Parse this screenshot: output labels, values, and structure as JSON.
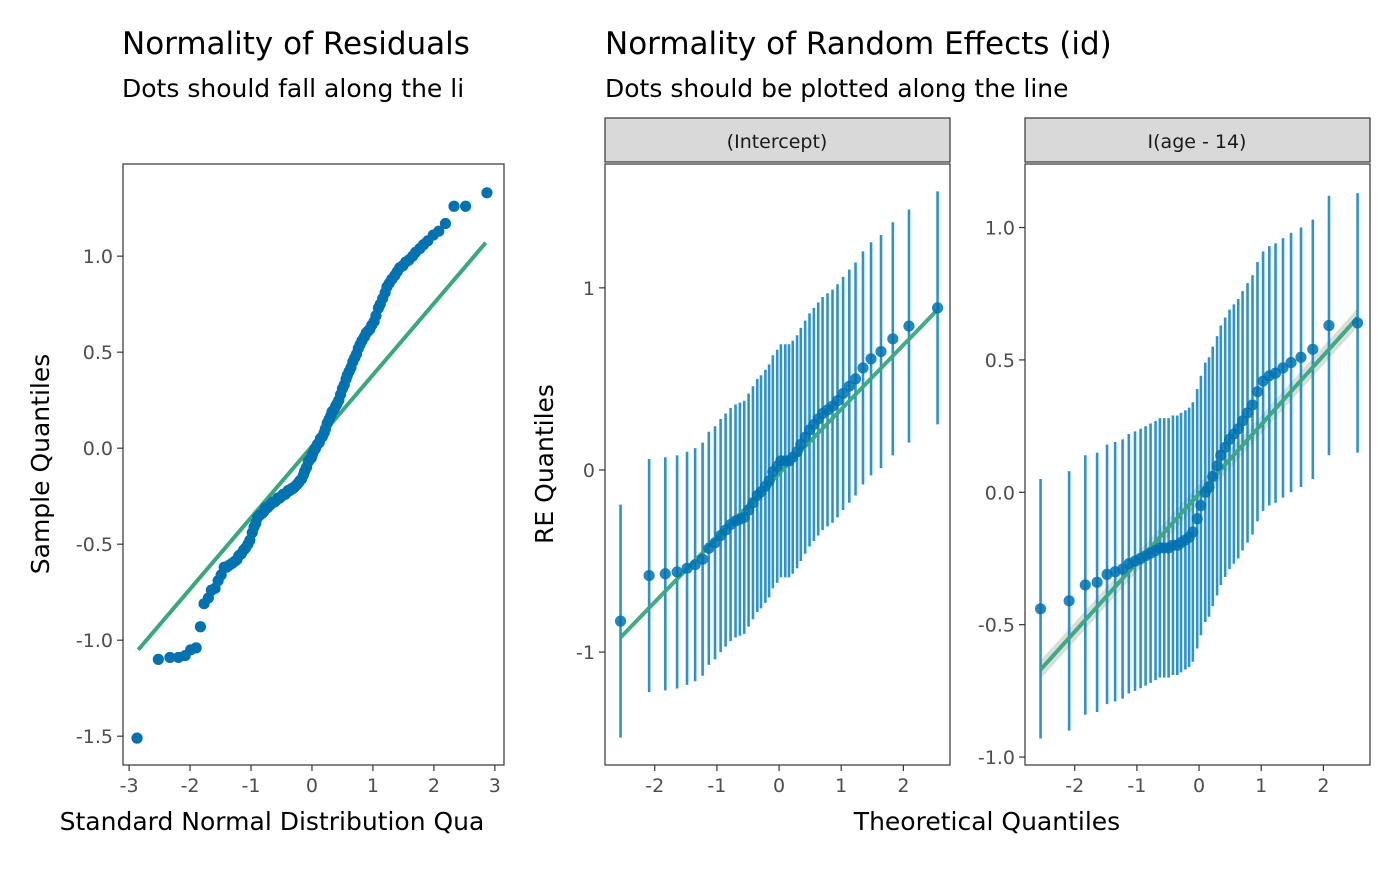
{
  "colors": {
    "points": "#0072B2",
    "errorbars": "#1b8ac4",
    "refline": "#3aa77e",
    "band": "#cfd6d2",
    "strip_fill": "#d9d9d9",
    "frame": "#333333",
    "tick_text": "#4d4d4d"
  },
  "chart_data": [
    {
      "id": "residuals",
      "type": "scatter",
      "title": "Normality of Residuals",
      "subtitle": "Dots should fall along the li",
      "xlabel": "Standard Normal Distribution Qua",
      "ylabel": "Sample Quantiles",
      "xlim": [
        -3.1,
        3.15
      ],
      "ylim": [
        -1.65,
        1.48
      ],
      "xticks": [
        -3,
        -2,
        -1,
        0,
        1,
        2,
        3
      ],
      "xtick_labels": [
        "-3",
        "-2",
        "-1",
        "0",
        "1",
        "2",
        "3"
      ],
      "yticks": [
        -1.5,
        -1.0,
        -0.5,
        0.0,
        0.5,
        1.0
      ],
      "ytick_labels": [
        "-1.5",
        "-1.0",
        "-0.5",
        "0.0",
        "0.5",
        "1.0"
      ],
      "grid": false,
      "line": {
        "x": [
          -2.85,
          2.85
        ],
        "y": [
          -1.05,
          1.07
        ]
      },
      "points": {
        "x": [
          -2.87,
          -2.52,
          -2.33,
          -2.19,
          -2.08,
          -1.99,
          -1.9,
          -1.83,
          -1.77,
          -1.7,
          -1.65,
          -1.59,
          -1.54,
          -1.49,
          -1.44,
          -1.4,
          -1.36,
          -1.31,
          -1.27,
          -1.23,
          -1.2,
          -1.16,
          -1.12,
          -1.09,
          -1.05,
          -1.02,
          -0.98,
          -0.95,
          -0.92,
          -0.89,
          -0.86,
          -0.82,
          -0.79,
          -0.76,
          -0.73,
          -0.7,
          -0.67,
          -0.64,
          -0.61,
          -0.58,
          -0.56,
          -0.53,
          -0.5,
          -0.47,
          -0.44,
          -0.41,
          -0.39,
          -0.36,
          -0.33,
          -0.31,
          -0.28,
          -0.25,
          -0.22,
          -0.2,
          -0.17,
          -0.14,
          -0.12,
          -0.09,
          -0.06,
          -0.04,
          -0.01,
          0.01,
          0.04,
          0.06,
          0.09,
          0.12,
          0.14,
          0.17,
          0.2,
          0.22,
          0.25,
          0.28,
          0.31,
          0.33,
          0.36,
          0.39,
          0.41,
          0.44,
          0.47,
          0.5,
          0.53,
          0.56,
          0.58,
          0.61,
          0.64,
          0.67,
          0.7,
          0.73,
          0.76,
          0.79,
          0.82,
          0.86,
          0.89,
          0.92,
          0.95,
          0.98,
          1.02,
          1.05,
          1.09,
          1.12,
          1.16,
          1.2,
          1.23,
          1.27,
          1.31,
          1.36,
          1.4,
          1.44,
          1.49,
          1.54,
          1.59,
          1.65,
          1.7,
          1.77,
          1.83,
          1.9,
          1.99,
          2.08,
          2.19,
          2.33,
          2.52,
          2.87
        ],
        "y": [
          -1.51,
          -1.1,
          -1.09,
          -1.09,
          -1.08,
          -1.05,
          -1.04,
          -0.93,
          -0.81,
          -0.78,
          -0.74,
          -0.73,
          -0.69,
          -0.66,
          -0.62,
          -0.62,
          -0.61,
          -0.6,
          -0.59,
          -0.58,
          -0.56,
          -0.55,
          -0.53,
          -0.52,
          -0.5,
          -0.48,
          -0.44,
          -0.41,
          -0.39,
          -0.36,
          -0.35,
          -0.34,
          -0.33,
          -0.31,
          -0.31,
          -0.3,
          -0.29,
          -0.28,
          -0.28,
          -0.27,
          -0.26,
          -0.26,
          -0.25,
          -0.24,
          -0.24,
          -0.23,
          -0.22,
          -0.22,
          -0.21,
          -0.21,
          -0.2,
          -0.19,
          -0.18,
          -0.17,
          -0.16,
          -0.14,
          -0.12,
          -0.1,
          -0.07,
          -0.06,
          -0.05,
          -0.03,
          -0.01,
          0.0,
          0.02,
          0.03,
          0.05,
          0.06,
          0.08,
          0.1,
          0.13,
          0.15,
          0.17,
          0.19,
          0.2,
          0.22,
          0.23,
          0.25,
          0.28,
          0.31,
          0.33,
          0.36,
          0.38,
          0.4,
          0.42,
          0.45,
          0.47,
          0.49,
          0.52,
          0.54,
          0.56,
          0.58,
          0.6,
          0.61,
          0.62,
          0.64,
          0.66,
          0.69,
          0.73,
          0.75,
          0.78,
          0.81,
          0.84,
          0.86,
          0.88,
          0.9,
          0.92,
          0.94,
          0.95,
          0.97,
          0.98,
          1.0,
          1.02,
          1.04,
          1.06,
          1.08,
          1.11,
          1.13,
          1.17,
          1.26,
          1.26,
          1.33
        ]
      }
    },
    {
      "id": "random-effects",
      "type": "scatter",
      "title": "Normality of Random Effects (id)",
      "subtitle": "Dots should be plotted along the line",
      "xlabel": "Theoretical Quantiles",
      "ylabel": "RE Quantiles",
      "facets": [
        {
          "id": "intercept",
          "strip": "(Intercept)",
          "xlim": [
            -2.8,
            2.75
          ],
          "ylim": [
            -1.62,
            1.68
          ],
          "xticks": [
            -2,
            -1,
            0,
            1,
            2
          ],
          "xtick_labels": [
            "-2",
            "-1",
            "0",
            "1",
            "2"
          ],
          "yticks": [
            -1,
            0,
            1
          ],
          "ytick_labels": [
            "-1",
            "0",
            "1"
          ],
          "line": {
            "x": [
              -2.55,
              2.55
            ],
            "y": [
              -0.92,
              0.88
            ]
          },
          "points": {
            "x": [
              -2.55,
              -2.09,
              -1.83,
              -1.64,
              -1.48,
              -1.35,
              -1.23,
              -1.13,
              -1.03,
              -0.94,
              -0.86,
              -0.78,
              -0.7,
              -0.63,
              -0.56,
              -0.49,
              -0.42,
              -0.35,
              -0.29,
              -0.22,
              -0.16,
              -0.1,
              -0.03,
              0.03,
              0.1,
              0.16,
              0.22,
              0.29,
              0.35,
              0.42,
              0.49,
              0.56,
              0.63,
              0.7,
              0.78,
              0.86,
              0.94,
              1.03,
              1.13,
              1.23,
              1.35,
              1.48,
              1.64,
              1.83,
              2.09,
              2.55
            ],
            "y": [
              -0.83,
              -0.58,
              -0.57,
              -0.56,
              -0.54,
              -0.52,
              -0.49,
              -0.43,
              -0.4,
              -0.36,
              -0.33,
              -0.3,
              -0.28,
              -0.27,
              -0.26,
              -0.22,
              -0.18,
              -0.14,
              -0.12,
              -0.09,
              -0.06,
              -0.01,
              0.02,
              0.05,
              0.05,
              0.05,
              0.07,
              0.1,
              0.14,
              0.18,
              0.22,
              0.25,
              0.28,
              0.31,
              0.33,
              0.35,
              0.38,
              0.42,
              0.46,
              0.5,
              0.56,
              0.61,
              0.65,
              0.72,
              0.79,
              0.89
            ],
            "err": [
              0.64,
              0.64,
              0.64,
              0.64,
              0.64,
              0.64,
              0.64,
              0.64,
              0.64,
              0.64,
              0.64,
              0.64,
              0.64,
              0.64,
              0.64,
              0.64,
              0.64,
              0.64,
              0.64,
              0.64,
              0.64,
              0.64,
              0.64,
              0.64,
              0.64,
              0.64,
              0.64,
              0.64,
              0.64,
              0.64,
              0.64,
              0.64,
              0.64,
              0.64,
              0.64,
              0.64,
              0.64,
              0.64,
              0.64,
              0.64,
              0.64,
              0.64,
              0.64,
              0.64,
              0.64,
              0.64
            ]
          }
        },
        {
          "id": "age",
          "strip": "I(age - 14)",
          "xlim": [
            -2.8,
            2.75
          ],
          "ylim": [
            -1.03,
            1.24
          ],
          "xticks": [
            -2,
            -1,
            0,
            1,
            2
          ],
          "xtick_labels": [
            "-2",
            "-1",
            "0",
            "1",
            "2"
          ],
          "yticks": [
            -1.0,
            -0.5,
            0.0,
            0.5,
            1.0
          ],
          "ytick_labels": [
            "-1.0",
            "-0.5",
            "0.0",
            "0.5",
            "1.0"
          ],
          "line": {
            "x": [
              -2.55,
              2.55
            ],
            "y": [
              -0.67,
              0.66
            ]
          },
          "points": {
            "x": [
              -2.55,
              -2.09,
              -1.83,
              -1.64,
              -1.48,
              -1.35,
              -1.23,
              -1.13,
              -1.03,
              -0.94,
              -0.86,
              -0.78,
              -0.7,
              -0.63,
              -0.56,
              -0.49,
              -0.42,
              -0.35,
              -0.29,
              -0.22,
              -0.16,
              -0.1,
              -0.03,
              0.03,
              0.1,
              0.16,
              0.22,
              0.29,
              0.35,
              0.42,
              0.49,
              0.56,
              0.63,
              0.7,
              0.78,
              0.86,
              0.94,
              1.03,
              1.13,
              1.23,
              1.35,
              1.48,
              1.64,
              1.83,
              2.09,
              2.55
            ],
            "y": [
              -0.44,
              -0.41,
              -0.35,
              -0.34,
              -0.31,
              -0.3,
              -0.29,
              -0.27,
              -0.26,
              -0.25,
              -0.24,
              -0.23,
              -0.22,
              -0.21,
              -0.21,
              -0.21,
              -0.2,
              -0.2,
              -0.19,
              -0.18,
              -0.17,
              -0.15,
              -0.1,
              -0.05,
              0.0,
              0.02,
              0.06,
              0.1,
              0.14,
              0.17,
              0.2,
              0.22,
              0.24,
              0.27,
              0.3,
              0.33,
              0.38,
              0.42,
              0.44,
              0.45,
              0.47,
              0.49,
              0.51,
              0.54,
              0.63,
              0.64
            ]
          },
          "errorbars": {
            "width": 0.49
          },
          "band": {
            "width": 0.035
          }
        }
      ]
    }
  ]
}
